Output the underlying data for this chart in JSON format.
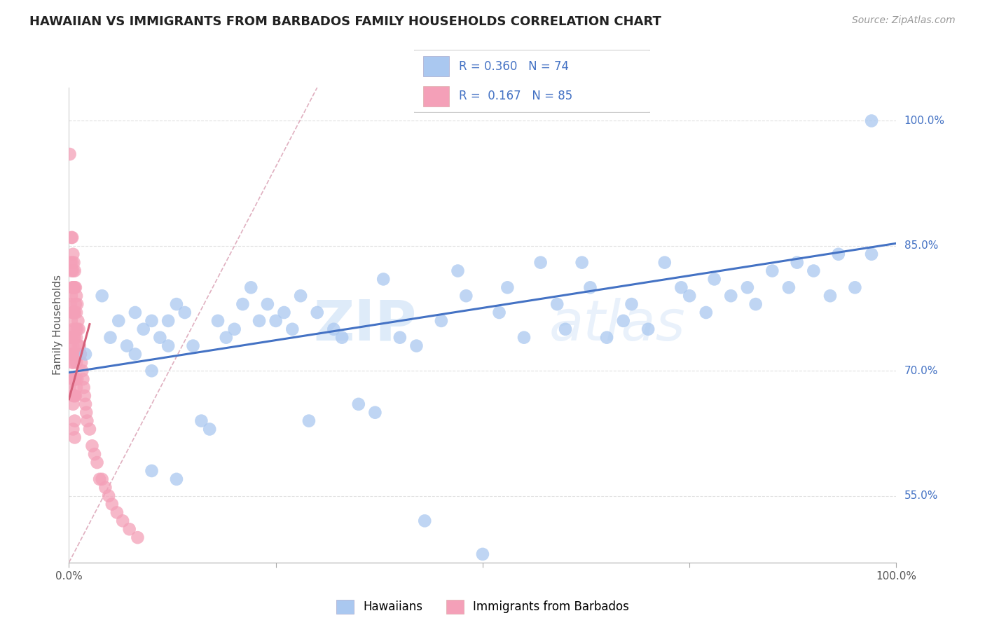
{
  "title": "HAWAIIAN VS IMMIGRANTS FROM BARBADOS FAMILY HOUSEHOLDS CORRELATION CHART",
  "source": "Source: ZipAtlas.com",
  "ylabel": "Family Households",
  "xlim": [
    0.0,
    1.0
  ],
  "ylim": [
    0.47,
    1.04
  ],
  "right_yticks": [
    0.55,
    0.7,
    0.85,
    1.0
  ],
  "right_yticklabels": [
    "55.0%",
    "70.0%",
    "85.0%",
    "100.0%"
  ],
  "hawaiians_x": [
    0.02,
    0.04,
    0.05,
    0.06,
    0.07,
    0.08,
    0.08,
    0.09,
    0.1,
    0.1,
    0.11,
    0.12,
    0.12,
    0.13,
    0.14,
    0.15,
    0.16,
    0.17,
    0.18,
    0.19,
    0.2,
    0.21,
    0.22,
    0.23,
    0.24,
    0.25,
    0.26,
    0.27,
    0.28,
    0.3,
    0.32,
    0.33,
    0.35,
    0.37,
    0.38,
    0.4,
    0.42,
    0.43,
    0.45,
    0.47,
    0.48,
    0.5,
    0.52,
    0.53,
    0.55,
    0.57,
    0.59,
    0.6,
    0.62,
    0.63,
    0.65,
    0.67,
    0.68,
    0.7,
    0.72,
    0.74,
    0.75,
    0.77,
    0.78,
    0.8,
    0.82,
    0.83,
    0.85,
    0.87,
    0.88,
    0.9,
    0.92,
    0.93,
    0.95,
    0.97,
    0.1,
    0.13,
    0.29,
    0.97
  ],
  "hawaiians_y": [
    0.72,
    0.79,
    0.74,
    0.76,
    0.73,
    0.77,
    0.72,
    0.75,
    0.76,
    0.7,
    0.74,
    0.76,
    0.73,
    0.78,
    0.77,
    0.73,
    0.64,
    0.63,
    0.76,
    0.74,
    0.75,
    0.78,
    0.8,
    0.76,
    0.78,
    0.76,
    0.77,
    0.75,
    0.79,
    0.77,
    0.75,
    0.74,
    0.66,
    0.65,
    0.81,
    0.74,
    0.73,
    0.52,
    0.76,
    0.82,
    0.79,
    0.48,
    0.77,
    0.8,
    0.74,
    0.83,
    0.78,
    0.75,
    0.83,
    0.8,
    0.74,
    0.76,
    0.78,
    0.75,
    0.83,
    0.8,
    0.79,
    0.77,
    0.81,
    0.79,
    0.8,
    0.78,
    0.82,
    0.8,
    0.83,
    0.82,
    0.79,
    0.84,
    0.8,
    1.0,
    0.58,
    0.57,
    0.64,
    0.84
  ],
  "barbados_x": [
    0.001,
    0.001,
    0.002,
    0.002,
    0.002,
    0.003,
    0.003,
    0.003,
    0.003,
    0.003,
    0.003,
    0.004,
    0.004,
    0.004,
    0.004,
    0.004,
    0.004,
    0.005,
    0.005,
    0.005,
    0.005,
    0.005,
    0.005,
    0.005,
    0.005,
    0.005,
    0.005,
    0.005,
    0.006,
    0.006,
    0.006,
    0.006,
    0.006,
    0.006,
    0.006,
    0.007,
    0.007,
    0.007,
    0.007,
    0.007,
    0.007,
    0.007,
    0.007,
    0.007,
    0.008,
    0.008,
    0.008,
    0.008,
    0.008,
    0.008,
    0.009,
    0.009,
    0.009,
    0.009,
    0.009,
    0.01,
    0.01,
    0.01,
    0.01,
    0.011,
    0.011,
    0.012,
    0.013,
    0.014,
    0.015,
    0.016,
    0.017,
    0.018,
    0.019,
    0.02,
    0.021,
    0.022,
    0.025,
    0.028,
    0.031,
    0.034,
    0.037,
    0.04,
    0.044,
    0.048,
    0.052,
    0.058,
    0.065,
    0.073,
    0.083
  ],
  "barbados_y": [
    0.74,
    0.68,
    0.83,
    0.78,
    0.73,
    0.86,
    0.82,
    0.79,
    0.76,
    0.74,
    0.72,
    0.86,
    0.83,
    0.8,
    0.77,
    0.74,
    0.71,
    0.84,
    0.82,
    0.8,
    0.77,
    0.75,
    0.73,
    0.71,
    0.69,
    0.67,
    0.66,
    0.63,
    0.83,
    0.8,
    0.77,
    0.74,
    0.72,
    0.69,
    0.67,
    0.82,
    0.8,
    0.77,
    0.74,
    0.72,
    0.69,
    0.67,
    0.64,
    0.62,
    0.8,
    0.78,
    0.75,
    0.72,
    0.69,
    0.67,
    0.79,
    0.77,
    0.74,
    0.71,
    0.68,
    0.78,
    0.75,
    0.72,
    0.69,
    0.76,
    0.73,
    0.75,
    0.73,
    0.72,
    0.71,
    0.7,
    0.69,
    0.68,
    0.67,
    0.66,
    0.65,
    0.64,
    0.63,
    0.61,
    0.6,
    0.59,
    0.57,
    0.57,
    0.56,
    0.55,
    0.54,
    0.53,
    0.52,
    0.51,
    0.5
  ],
  "barbados_outlier_x": [
    0.001
  ],
  "barbados_outlier_y": [
    0.96
  ],
  "hawaiians_color": "#aac8f0",
  "barbados_color": "#f4a0b8",
  "hawaiians_line_color": "#4472c4",
  "barbados_line_color": "#d4607a",
  "diagonal_color": "#e0b0c0",
  "grid_color": "#e0e0e0",
  "r_hawaiians": 0.36,
  "n_hawaiians": 74,
  "r_barbados": 0.167,
  "n_barbados": 85,
  "watermark_zip": "ZIP",
  "watermark_atlas": "atlas",
  "legend_hawaiians": "Hawaiians",
  "legend_barbados": "Immigrants from Barbados",
  "background_color": "#ffffff",
  "hawaiians_trendline_x": [
    0.0,
    1.0
  ],
  "hawaiians_trendline_y": [
    0.698,
    0.853
  ],
  "barbados_trendline_x": [
    0.0,
    0.025
  ],
  "barbados_trendline_y": [
    0.666,
    0.756
  ]
}
